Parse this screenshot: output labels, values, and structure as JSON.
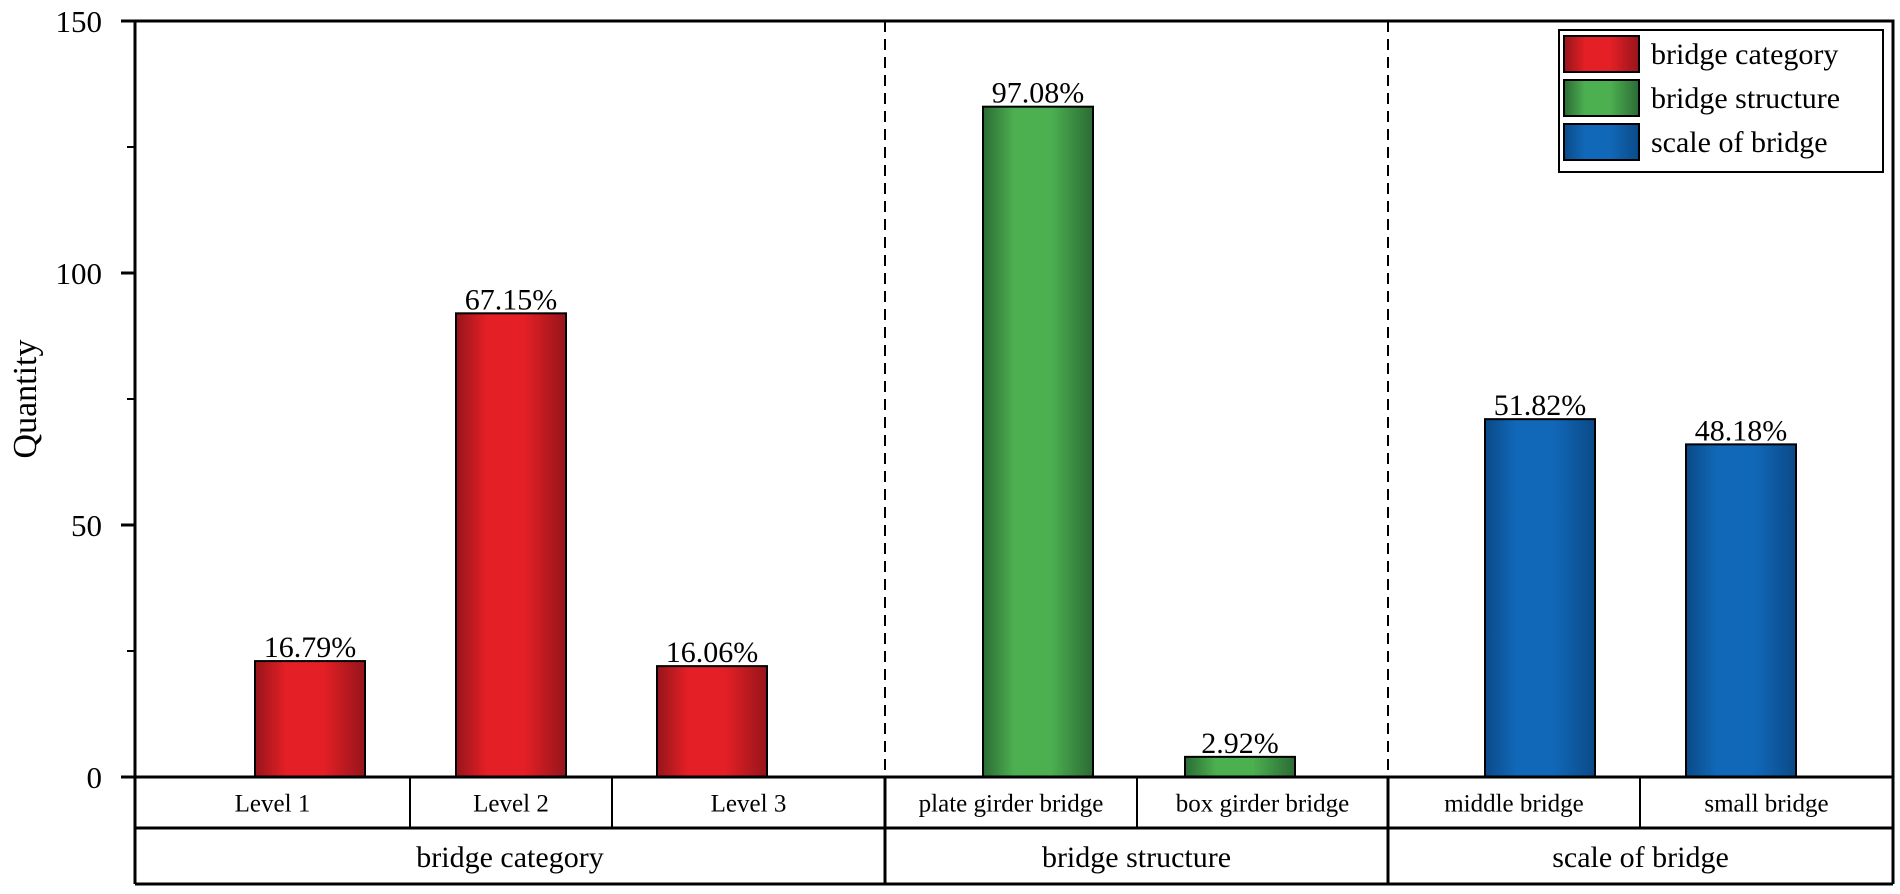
{
  "chart_data": {
    "type": "bar",
    "title": "",
    "xlabel": "",
    "ylabel": "Quantity",
    "ylim": [
      0,
      150
    ],
    "yticks": [
      0,
      50,
      100,
      150
    ],
    "grid": false,
    "legend_position": "top-right",
    "series": [
      {
        "name": "bridge category",
        "color": "#e41f26",
        "color_dark": "#96151b"
      },
      {
        "name": "bridge structure",
        "color": "#4caf50",
        "color_dark": "#2b6b35"
      },
      {
        "name": "scale of bridge",
        "color": "#1168b8",
        "color_dark": "#0a4a88"
      }
    ],
    "groups": [
      {
        "name": "bridge category",
        "series": 0,
        "bars": [
          {
            "category": "Level 1",
            "value": 23,
            "label": "16.79%"
          },
          {
            "category": "Level 2",
            "value": 92,
            "label": "67.15%"
          },
          {
            "category": "Level 3",
            "value": 22,
            "label": "16.06%"
          }
        ]
      },
      {
        "name": "bridge structure",
        "series": 1,
        "bars": [
          {
            "category": "plate girder bridge",
            "value": 133,
            "label": "97.08%"
          },
          {
            "category": "box girder bridge",
            "value": 4,
            "label": "2.92%"
          }
        ]
      },
      {
        "name": "scale of bridge",
        "series": 2,
        "bars": [
          {
            "category": "middle bridge",
            "value": 71,
            "label": "51.82%"
          },
          {
            "category": "small bridge",
            "value": 66,
            "label": "48.18%"
          }
        ]
      }
    ]
  }
}
